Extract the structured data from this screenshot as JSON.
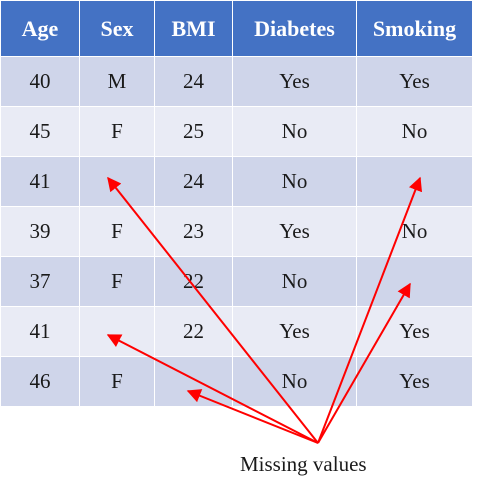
{
  "table": {
    "headers": [
      "Age",
      "Sex",
      "BMI",
      "Diabetes",
      "Smoking"
    ],
    "rows": [
      [
        "40",
        "M",
        "24",
        "Yes",
        "Yes"
      ],
      [
        "45",
        "F",
        "25",
        "No",
        "No"
      ],
      [
        "41",
        "",
        "24",
        "No",
        ""
      ],
      [
        "39",
        "F",
        "23",
        "Yes",
        "No"
      ],
      [
        "37",
        "F",
        "22",
        "No",
        ""
      ],
      [
        "41",
        "",
        "22",
        "Yes",
        "Yes"
      ],
      [
        "46",
        "F",
        "",
        "No",
        "Yes"
      ]
    ]
  },
  "annotation": {
    "label": "Missing values",
    "arrow_color": "#ff0000"
  },
  "colors": {
    "header": "#4472c4",
    "row_odd": "#cfd5ea",
    "row_even": "#e9ebf5"
  }
}
